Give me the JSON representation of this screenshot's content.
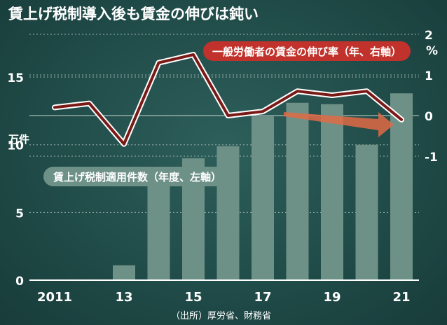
{
  "chart_data": [
    {
      "type": "line",
      "title": "賃上げ税制導入後も賃金の伸びは鈍い",
      "series": [
        {
          "name": "一般労働者の賃金の伸び率（年、右軸）",
          "x": [
            "2011",
            "2012",
            "2013",
            "2014",
            "2015",
            "2016",
            "2017",
            "2018",
            "2019",
            "2020",
            "2021"
          ],
          "values": [
            0.2,
            0.3,
            -0.7,
            1.3,
            1.5,
            0.0,
            0.1,
            0.6,
            0.5,
            0.6,
            -0.1
          ]
        }
      ],
      "yaxis_right": {
        "unit": "%",
        "ticks": [
          "2",
          "1",
          "0",
          "-1"
        ],
        "range": [
          -1,
          2
        ]
      },
      "color": "#7a1a17",
      "legend_color": "#c0322b"
    },
    {
      "type": "bar",
      "series": [
        {
          "name": "賃上げ税制適用件数（年度、左軸）",
          "x": [
            "2013",
            "2014",
            "2015",
            "2016",
            "2017",
            "2018",
            "2019",
            "2020",
            "2021"
          ],
          "values": [
            1.1,
            7.8,
            9.0,
            9.9,
            12.1,
            13.1,
            13.0,
            10.0,
            13.8
          ]
        }
      ],
      "yaxis_left": {
        "unit": "万件",
        "ticks": [
          "15",
          "10",
          "5",
          "0"
        ],
        "range": [
          0,
          15
        ]
      },
      "color": "#6e9187"
    }
  ],
  "x_ticks": [
    "2011",
    "13",
    "15",
    "17",
    "19",
    "21"
  ],
  "source": "（出所）厚労省、財務省"
}
